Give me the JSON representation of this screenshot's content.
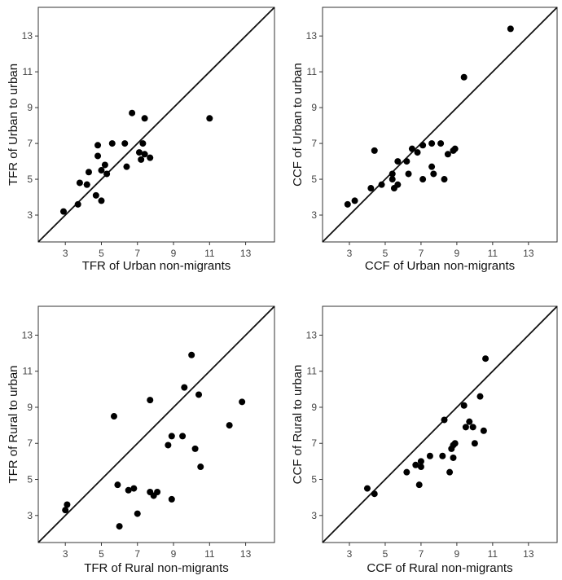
{
  "chart_data": [
    {
      "type": "scatter",
      "xlabel": "TFR of Urban non-migrants",
      "ylabel": "TFR of Urban to urban",
      "xlim": [
        1.5,
        14.6
      ],
      "ylim": [
        1.5,
        14.6
      ],
      "xticks": [
        3,
        5,
        7,
        9,
        11,
        13
      ],
      "yticks": [
        3,
        5,
        7,
        9,
        11,
        13
      ],
      "reference_line": "y = x",
      "x": [
        2.9,
        3.7,
        3.8,
        4.2,
        4.2,
        4.3,
        4.7,
        4.8,
        4.8,
        5.0,
        5.0,
        5.2,
        5.3,
        5.6,
        6.3,
        6.4,
        6.7,
        7.1,
        7.2,
        7.3,
        7.4,
        7.4,
        7.7,
        11.0
      ],
      "y": [
        3.2,
        3.6,
        4.8,
        4.7,
        4.7,
        5.4,
        4.1,
        6.9,
        6.3,
        5.5,
        3.8,
        5.8,
        5.3,
        7.0,
        7.0,
        5.7,
        8.7,
        6.5,
        6.1,
        7.0,
        6.4,
        8.4,
        6.2,
        8.4
      ]
    },
    {
      "type": "scatter",
      "xlabel": "CCF of Urban non-migrants",
      "ylabel": "CCF of Urban to urban",
      "xlim": [
        1.5,
        14.6
      ],
      "ylim": [
        1.5,
        14.6
      ],
      "xticks": [
        3,
        5,
        7,
        9,
        11,
        13
      ],
      "yticks": [
        3,
        5,
        7,
        9,
        11,
        13
      ],
      "reference_line": "y = x",
      "x": [
        2.9,
        3.3,
        4.2,
        4.4,
        4.8,
        5.4,
        5.4,
        5.5,
        5.7,
        5.7,
        6.2,
        6.3,
        6.5,
        6.8,
        7.1,
        7.1,
        7.6,
        7.6,
        7.7,
        8.1,
        8.3,
        8.5,
        8.8,
        8.9,
        9.4,
        12.0
      ],
      "y": [
        3.6,
        3.8,
        4.5,
        6.6,
        4.7,
        5.3,
        5.0,
        4.5,
        4.7,
        6.0,
        6.0,
        5.3,
        6.7,
        6.5,
        6.9,
        5.0,
        5.7,
        7.0,
        5.3,
        7.0,
        5.0,
        6.4,
        6.6,
        6.7,
        10.7,
        13.4
      ]
    },
    {
      "type": "scatter",
      "xlabel": "TFR of Rural non-migrants",
      "ylabel": "TFR of Rural to urban",
      "xlim": [
        1.5,
        14.6
      ],
      "ylim": [
        1.5,
        14.6
      ],
      "xticks": [
        3,
        5,
        7,
        9,
        11,
        13
      ],
      "yticks": [
        3,
        5,
        7,
        9,
        11,
        13
      ],
      "reference_line": "y = x",
      "x": [
        3.0,
        3.1,
        5.7,
        5.9,
        6.0,
        6.5,
        6.8,
        7.0,
        7.7,
        7.7,
        7.9,
        8.1,
        8.7,
        8.9,
        8.9,
        9.5,
        9.6,
        10.0,
        10.2,
        10.4,
        10.5,
        12.1,
        12.8
      ],
      "y": [
        3.3,
        3.6,
        8.5,
        4.7,
        2.4,
        4.4,
        4.5,
        3.1,
        9.4,
        4.3,
        4.1,
        4.3,
        6.9,
        7.4,
        3.9,
        7.4,
        10.1,
        11.9,
        6.7,
        9.7,
        5.7,
        8.0,
        9.3
      ]
    },
    {
      "type": "scatter",
      "xlabel": "CCF of Rural non-migrants",
      "ylabel": "CCF of Rural to urban",
      "xlim": [
        1.5,
        14.6
      ],
      "ylim": [
        1.5,
        14.6
      ],
      "xticks": [
        3,
        5,
        7,
        9,
        11,
        13
      ],
      "yticks": [
        3,
        5,
        7,
        9,
        11,
        13
      ],
      "reference_line": "y = x",
      "x": [
        4.0,
        4.4,
        6.2,
        6.7,
        6.9,
        7.0,
        7.0,
        7.5,
        8.2,
        8.3,
        8.6,
        8.7,
        8.8,
        8.8,
        8.9,
        9.4,
        9.5,
        9.7,
        9.9,
        10.0,
        10.3,
        10.5,
        10.6
      ],
      "y": [
        4.5,
        4.2,
        5.4,
        5.8,
        4.7,
        6.0,
        5.7,
        6.3,
        6.3,
        8.3,
        5.4,
        6.7,
        6.2,
        6.9,
        7.0,
        9.1,
        7.9,
        8.2,
        7.9,
        7.0,
        9.6,
        7.7,
        11.7
      ]
    }
  ]
}
